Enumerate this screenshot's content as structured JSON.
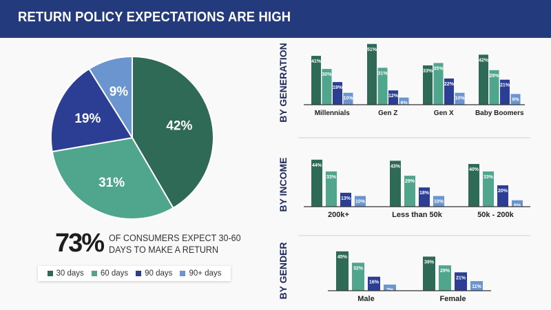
{
  "header": {
    "title": "RETURN POLICY EXPECTATIONS ARE HIGH"
  },
  "colors": {
    "header": "#233a7c",
    "30 days": "#2f6a56",
    "60 days": "#4fa68d",
    "90 days": "#2b3e94",
    "90+ days": "#6a95cf"
  },
  "stat": {
    "value": "73%",
    "text": "OF CONSUMERS EXPECT 30-60 DAYS TO MAKE A RETURN"
  },
  "legend": [
    {
      "label": "30 days",
      "color": "#2f6a56"
    },
    {
      "label": "60 days",
      "color": "#4fa68d"
    },
    {
      "label": "90 days",
      "color": "#2b3e94"
    },
    {
      "label": "90+ days",
      "color": "#6a95cf"
    }
  ],
  "chart_data": [
    {
      "type": "pie",
      "categories": [
        "30 days",
        "60 days",
        "90 days",
        "90+ days"
      ],
      "values": [
        42,
        31,
        19,
        9
      ],
      "labels": [
        "42%",
        "31%",
        "19%",
        "9%"
      ],
      "legend": "bottom"
    },
    {
      "type": "bar",
      "title": "BY GENERATION",
      "categories": [
        "Millennials",
        "Gen Z",
        "Gen X",
        "Baby Boomers"
      ],
      "series": [
        {
          "name": "30 days",
          "values": [
            41,
            51,
            33,
            42
          ]
        },
        {
          "name": "60 days",
          "values": [
            30,
            31,
            35,
            29
          ]
        },
        {
          "name": "90 days",
          "values": [
            19,
            12,
            22,
            21
          ]
        },
        {
          "name": "90+ days",
          "values": [
            10,
            6,
            10,
            9
          ]
        }
      ],
      "unit": "%",
      "grid": false
    },
    {
      "type": "bar",
      "title": "BY INCOME",
      "categories": [
        "200k+",
        "Less than 50k",
        "50k - 200k"
      ],
      "series": [
        {
          "name": "30 days",
          "values": [
            44,
            43,
            40
          ]
        },
        {
          "name": "60 days",
          "values": [
            33,
            29,
            33
          ]
        },
        {
          "name": "90 days",
          "values": [
            13,
            18,
            20
          ]
        },
        {
          "name": "90+ days",
          "values": [
            10,
            10,
            6
          ]
        }
      ],
      "unit": "%",
      "grid": false
    },
    {
      "type": "bar",
      "title": "BY GENDER",
      "categories": [
        "Male",
        "Female"
      ],
      "series": [
        {
          "name": "30 days",
          "values": [
            45,
            39
          ]
        },
        {
          "name": "60 days",
          "values": [
            32,
            29
          ]
        },
        {
          "name": "90 days",
          "values": [
            16,
            21
          ]
        },
        {
          "name": "90+ days",
          "values": [
            7,
            11
          ]
        }
      ],
      "unit": "%",
      "grid": false
    }
  ]
}
